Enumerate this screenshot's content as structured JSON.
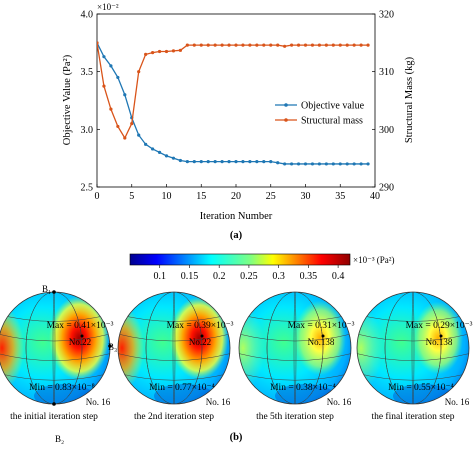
{
  "chart_data": [
    {
      "type": "line",
      "panel_label": "(a)",
      "xlabel": "Iteration Number",
      "ylabel_left": "Objective Value (Pa²)",
      "ylabel_right": "Structural Mass (kg)",
      "left_exponent": "×10⁻²",
      "xlim": [
        0,
        40
      ],
      "ylim_left": [
        2.5,
        4.0
      ],
      "ylim_right": [
        290,
        320
      ],
      "x_ticks": [
        "0",
        "5",
        "10",
        "15",
        "20",
        "25",
        "30",
        "35",
        "40"
      ],
      "y_ticks_left": [
        "2.5",
        "3.0",
        "3.5",
        "4.0"
      ],
      "y_ticks_right": [
        "290",
        "300",
        "310",
        "320"
      ],
      "legend_position": "right-middle",
      "series": [
        {
          "name": "Objective value",
          "axis": "left",
          "color": "#1f77b4",
          "x": [
            0,
            1,
            2,
            3,
            4,
            5,
            6,
            7,
            8,
            9,
            10,
            11,
            12,
            13,
            14,
            15,
            16,
            17,
            18,
            19,
            20,
            21,
            22,
            23,
            24,
            25,
            26,
            27,
            28,
            29,
            30,
            31,
            32,
            33,
            34,
            35,
            36,
            37,
            38,
            39
          ],
          "values": [
            3.75,
            3.63,
            3.55,
            3.45,
            3.3,
            3.1,
            2.95,
            2.87,
            2.83,
            2.8,
            2.77,
            2.75,
            2.73,
            2.72,
            2.72,
            2.72,
            2.72,
            2.72,
            2.72,
            2.72,
            2.72,
            2.72,
            2.72,
            2.72,
            2.72,
            2.72,
            2.71,
            2.7,
            2.7,
            2.7,
            2.7,
            2.7,
            2.7,
            2.7,
            2.7,
            2.7,
            2.7,
            2.7,
            2.7,
            2.7
          ]
        },
        {
          "name": "Structural mass",
          "axis": "right",
          "color": "#d9541a",
          "x": [
            0,
            1,
            2,
            3,
            4,
            5,
            6,
            7,
            8,
            9,
            10,
            11,
            12,
            13,
            14,
            15,
            16,
            17,
            18,
            19,
            20,
            21,
            22,
            23,
            24,
            25,
            26,
            27,
            28,
            29,
            30,
            31,
            32,
            33,
            34,
            35,
            36,
            37,
            38,
            39
          ],
          "values": [
            315.0,
            307.5,
            303.5,
            300.5,
            298.5,
            301.0,
            310.0,
            313.0,
            313.3,
            313.5,
            313.5,
            313.6,
            313.7,
            314.6,
            314.6,
            314.6,
            314.6,
            314.6,
            314.6,
            314.6,
            314.6,
            314.6,
            314.6,
            314.6,
            314.6,
            314.6,
            314.6,
            314.4,
            314.6,
            314.6,
            314.6,
            314.6,
            314.6,
            314.6,
            314.6,
            314.6,
            314.6,
            314.6,
            314.6,
            314.6
          ]
        }
      ]
    },
    {
      "type": "heatmap",
      "panel_label": "(b)",
      "colorbar_unit": "×10⁻³ (Pa²)",
      "colorbar_ticks": [
        "0.1",
        "0.15",
        "0.2",
        "0.25",
        "0.3",
        "0.35",
        "0.4"
      ],
      "colorbar_range": [
        0.05,
        0.42
      ],
      "spheres": [
        {
          "caption": "the initial iteration step",
          "max_label": "Max = 0.41×10⁻³",
          "min_label": "Min = 0.83×10⁻⁸",
          "max_node": "No.22",
          "min_node": "No. 16",
          "max_value": 0.41,
          "hot_intensity": 1.0
        },
        {
          "caption": "the 2nd iteration step",
          "max_label": "Max = 0.39×10⁻³",
          "min_label": "Min = 0.77×10⁻⁴",
          "max_node": "No.22",
          "min_node": "No. 16",
          "max_value": 0.39,
          "hot_intensity": 0.95
        },
        {
          "caption": "the 5th iteration step",
          "max_label": "Max = 0.31×10⁻³",
          "min_label": "Min = 0.38×10⁻⁴",
          "max_node": "No.138",
          "min_node": "No. 16",
          "max_value": 0.31,
          "hot_intensity": 0.72
        },
        {
          "caption": "the final iteration step",
          "max_label": "Max = 0.29×10⁻³",
          "min_label": "Min = 0.55×10⁻⁴",
          "max_node": "No.138",
          "min_node": "No. 16",
          "max_value": 0.29,
          "hot_intensity": 0.65
        }
      ],
      "point_labels": {
        "b1": "B₁",
        "b2": "B₂",
        "b3": "B₃"
      }
    }
  ]
}
